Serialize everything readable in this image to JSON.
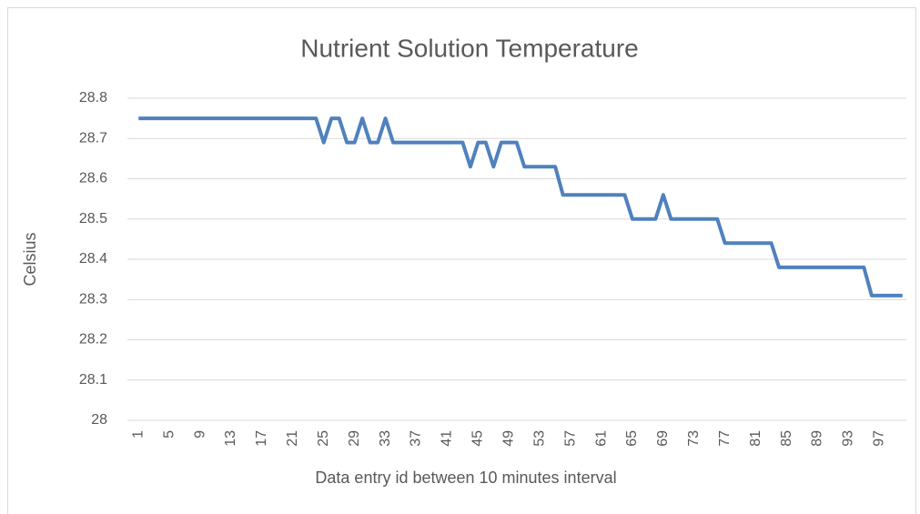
{
  "chart_data": {
    "type": "line",
    "title": "Nutrient Solution Temperature",
    "y_label": "Celsius",
    "x_label": "Data entry id between 10 minutes interval",
    "categories": [
      "1",
      null,
      null,
      null,
      "5",
      null,
      null,
      null,
      "9",
      null,
      null,
      null,
      "13",
      null,
      null,
      null,
      "17",
      null,
      null,
      null,
      "21",
      null,
      null,
      null,
      "25",
      null,
      null,
      null,
      "29",
      null,
      null,
      null,
      "33",
      null,
      null,
      null,
      "37",
      null,
      null,
      null,
      "41",
      null,
      null,
      null,
      "45",
      null,
      null,
      null,
      "49",
      null,
      null,
      null,
      "53",
      null,
      null,
      null,
      "57",
      null,
      null,
      null,
      "61",
      null,
      null,
      null,
      "65",
      null,
      null,
      null,
      "69",
      null,
      null,
      null,
      "73",
      null,
      null,
      null,
      "77",
      null,
      null,
      null,
      "81",
      null,
      null,
      null,
      "85",
      null,
      null,
      null,
      "89",
      null,
      null,
      null,
      "93",
      null,
      null,
      null,
      "97",
      null,
      null,
      null
    ],
    "values": [
      28.75,
      28.75,
      28.75,
      28.75,
      28.75,
      28.75,
      28.75,
      28.75,
      28.75,
      28.75,
      28.75,
      28.75,
      28.75,
      28.75,
      28.75,
      28.75,
      28.75,
      28.75,
      28.75,
      28.75,
      28.75,
      28.75,
      28.75,
      28.75,
      28.69,
      28.75,
      28.75,
      28.69,
      28.69,
      28.75,
      28.69,
      28.69,
      28.75,
      28.69,
      28.69,
      28.69,
      28.69,
      28.69,
      28.69,
      28.69,
      28.69,
      28.69,
      28.69,
      28.63,
      28.69,
      28.69,
      28.63,
      28.69,
      28.69,
      28.69,
      28.63,
      28.63,
      28.63,
      28.63,
      28.63,
      28.56,
      28.56,
      28.56,
      28.56,
      28.56,
      28.56,
      28.56,
      28.56,
      28.56,
      28.5,
      28.5,
      28.5,
      28.5,
      28.56,
      28.5,
      28.5,
      28.5,
      28.5,
      28.5,
      28.5,
      28.5,
      28.44,
      28.44,
      28.44,
      28.44,
      28.44,
      28.44,
      28.44,
      28.38,
      28.38,
      28.38,
      28.38,
      28.38,
      28.38,
      28.38,
      28.38,
      28.38,
      28.38,
      28.38,
      28.38,
      28.31,
      28.31,
      28.31,
      28.31,
      28.31
    ],
    "color": "#4f81bd",
    "ylim": [
      28,
      28.8
    ],
    "yticks": [
      28,
      28.1,
      28.2,
      28.3,
      28.4,
      28.5,
      28.6,
      28.7,
      28.8
    ],
    "grid": true
  }
}
